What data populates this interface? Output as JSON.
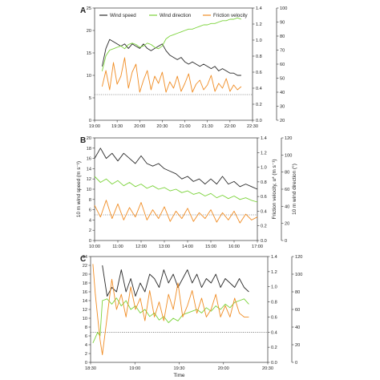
{
  "chart_data": [
    {
      "type": "line",
      "panel_label": "A",
      "xlabel": "",
      "x_ticks": [
        "19:00",
        "19:30",
        "20:00",
        "20:30",
        "21:00",
        "21:30",
        "22:00",
        "22:30"
      ],
      "x_range_min": [
        0,
        210
      ],
      "left_axis": {
        "label": "",
        "ylim": [
          0,
          25
        ],
        "ticks": [
          "0",
          "5",
          "10",
          "15",
          "20",
          "25"
        ]
      },
      "right_axis_1": {
        "label": "",
        "ylim": [
          0.0,
          1.4
        ],
        "ticks": [
          "0.0",
          "0.2",
          "0.4",
          "0.6",
          "0.8",
          "1.0",
          "1.2",
          "1.4"
        ]
      },
      "right_axis_2": {
        "label": "",
        "ylim": [
          20,
          100
        ],
        "ticks": [
          "20",
          "30",
          "40",
          "50",
          "60",
          "70",
          "80",
          "90",
          "100"
        ]
      },
      "legend": {
        "placement": "top",
        "entries": [
          "Wind speed",
          "Wind direction",
          "Friction velocity"
        ]
      },
      "reference_line": {
        "axis": "right_axis_1",
        "value": 0.32,
        "style": "dotted"
      },
      "series": [
        {
          "name": "Wind speed",
          "axis": "left",
          "color": "#2b2b2b",
          "x": [
            10,
            15,
            20,
            25,
            30,
            35,
            40,
            45,
            50,
            55,
            60,
            65,
            70,
            75,
            80,
            85,
            90,
            95,
            100,
            105,
            110,
            115,
            120,
            125,
            130,
            135,
            140,
            145,
            150,
            155,
            160,
            165,
            170,
            175,
            180,
            185,
            190,
            195
          ],
          "values": [
            12,
            16,
            18,
            17.5,
            17,
            16.5,
            17,
            16,
            17,
            16.5,
            16,
            17,
            16,
            15.5,
            16,
            16.5,
            17,
            15.5,
            14.5,
            14,
            13.5,
            14,
            13,
            12.5,
            13,
            12.5,
            12,
            12.5,
            12,
            11.5,
            12,
            11,
            11.5,
            11,
            10.5,
            10.5,
            10,
            10
          ]
        },
        {
          "name": "Wind direction",
          "axis": "right_2",
          "color": "#7bd33a",
          "x": [
            10,
            15,
            20,
            25,
            30,
            35,
            40,
            45,
            50,
            55,
            60,
            65,
            70,
            75,
            80,
            85,
            90,
            95,
            100,
            105,
            110,
            115,
            120,
            125,
            130,
            135,
            140,
            145,
            150,
            155,
            160,
            165,
            170,
            175,
            180,
            185,
            190,
            195
          ],
          "values": [
            55,
            66,
            70,
            71,
            72,
            73,
            71,
            74,
            75,
            74,
            72,
            73,
            75,
            74,
            72,
            71,
            73,
            78,
            80,
            81,
            82,
            83,
            84,
            85,
            85,
            86,
            87,
            88,
            88,
            89,
            89,
            90,
            91,
            91,
            92,
            92,
            93,
            92
          ]
        },
        {
          "name": "Friction velocity",
          "axis": "right_1",
          "color": "#f08c23",
          "x": [
            10,
            15,
            20,
            25,
            30,
            35,
            40,
            45,
            50,
            55,
            60,
            65,
            70,
            75,
            80,
            85,
            90,
            95,
            100,
            105,
            110,
            115,
            120,
            125,
            130,
            135,
            140,
            145,
            150,
            155,
            160,
            165,
            170,
            175,
            180,
            185,
            190,
            195
          ],
          "values": [
            0.42,
            0.62,
            0.38,
            0.72,
            0.45,
            0.55,
            0.78,
            0.4,
            0.6,
            0.7,
            0.35,
            0.5,
            0.62,
            0.38,
            0.55,
            0.46,
            0.6,
            0.35,
            0.48,
            0.4,
            0.55,
            0.36,
            0.46,
            0.58,
            0.35,
            0.45,
            0.5,
            0.38,
            0.44,
            0.56,
            0.36,
            0.46,
            0.4,
            0.52,
            0.36,
            0.44,
            0.38,
            0.42
          ]
        }
      ]
    },
    {
      "type": "line",
      "panel_label": "B",
      "xlabel": "",
      "x_ticks": [
        "10:00",
        "11:00",
        "12:00",
        "13:00",
        "14:00",
        "15:00",
        "16:00",
        "17:00"
      ],
      "x_range_min": [
        0,
        420
      ],
      "left_axis": {
        "label": "10 m wind speed (m s⁻¹)",
        "ylim": [
          0,
          20
        ],
        "ticks": [
          "0",
          "2",
          "4",
          "6",
          "8",
          "10",
          "12",
          "14",
          "16",
          "18",
          "20"
        ]
      },
      "right_axis_1": {
        "label": "Friction velocity, u* (m s⁻¹)",
        "ylim": [
          0.0,
          1.4
        ],
        "ticks": [
          "0.0",
          "0.2",
          "0.4",
          "0.6",
          "0.8",
          "1.0",
          "1.2",
          "1.4"
        ]
      },
      "right_axis_2": {
        "label": "10 m wind direction (°)",
        "ylim": [
          0,
          120
        ],
        "ticks": [
          "0",
          "20",
          "40",
          "60",
          "80",
          "100",
          "120"
        ]
      },
      "reference_line": {
        "axis": "right_axis_1",
        "value": 0.35,
        "style": "dotted"
      },
      "series": [
        {
          "name": "Wind speed",
          "axis": "left",
          "color": "#2b2b2b",
          "x": [
            0,
            15,
            30,
            45,
            60,
            75,
            90,
            105,
            120,
            135,
            150,
            165,
            180,
            195,
            210,
            225,
            240,
            255,
            270,
            285,
            300,
            315,
            330,
            345,
            360,
            375,
            390,
            405,
            420
          ],
          "values": [
            16,
            18,
            16,
            17,
            15.5,
            17,
            16,
            15,
            16.5,
            15,
            14.5,
            15,
            14,
            13.5,
            13,
            12,
            12.5,
            11.5,
            12,
            11,
            12,
            11,
            12.5,
            11,
            11.5,
            10.5,
            11,
            10.5,
            10
          ]
        },
        {
          "name": "Wind direction",
          "axis": "right_2",
          "color": "#7bd33a",
          "x": [
            0,
            15,
            30,
            45,
            60,
            75,
            90,
            105,
            120,
            135,
            150,
            165,
            180,
            195,
            210,
            225,
            240,
            255,
            270,
            285,
            300,
            315,
            330,
            345,
            360,
            375,
            390,
            405,
            420
          ],
          "values": [
            75,
            68,
            72,
            66,
            70,
            64,
            68,
            63,
            66,
            61,
            64,
            60,
            62,
            58,
            60,
            56,
            58,
            54,
            56,
            52,
            55,
            50,
            53,
            49,
            52,
            48,
            50,
            47,
            45
          ]
        },
        {
          "name": "Friction velocity",
          "axis": "right_1",
          "color": "#f08c23",
          "x": [
            0,
            15,
            30,
            45,
            60,
            75,
            90,
            105,
            120,
            135,
            150,
            165,
            180,
            195,
            210,
            225,
            240,
            255,
            270,
            285,
            300,
            315,
            330,
            345,
            360,
            375,
            390,
            405,
            420
          ],
          "values": [
            0.48,
            0.32,
            0.55,
            0.3,
            0.5,
            0.28,
            0.45,
            0.32,
            0.52,
            0.28,
            0.42,
            0.3,
            0.46,
            0.26,
            0.4,
            0.3,
            0.44,
            0.26,
            0.38,
            0.3,
            0.42,
            0.25,
            0.38,
            0.28,
            0.4,
            0.24,
            0.36,
            0.28,
            0.32
          ]
        }
      ]
    },
    {
      "type": "line",
      "panel_label": "C",
      "xlabel": "Time",
      "x_ticks": [
        "18:30",
        "19:00",
        "19:30",
        "20:00",
        "20:30"
      ],
      "x_range_min": [
        0,
        150
      ],
      "left_axis": {
        "label": "",
        "ylim": [
          0,
          24
        ],
        "ticks": [
          "0",
          "2",
          "4",
          "6",
          "8",
          "10",
          "12",
          "14",
          "16",
          "18",
          "20",
          "22",
          "24"
        ]
      },
      "right_axis_1": {
        "label": "",
        "ylim": [
          0.0,
          1.4
        ],
        "ticks": [
          "0.0",
          "0.2",
          "0.4",
          "0.6",
          "0.8",
          "1.0",
          "1.2",
          "1.4"
        ]
      },
      "right_axis_2": {
        "label": "",
        "ylim": [
          0,
          120
        ],
        "ticks": [
          "0",
          "20",
          "40",
          "60",
          "80",
          "100",
          "120"
        ]
      },
      "reference_line": {
        "axis": "right_axis_1",
        "value": 0.4,
        "style": "dotted"
      },
      "series": [
        {
          "name": "Wind speed",
          "axis": "left",
          "color": "#2b2b2b",
          "x": [
            10,
            14,
            18,
            22,
            26,
            30,
            34,
            38,
            42,
            46,
            50,
            54,
            58,
            62,
            66,
            70,
            74,
            78,
            82,
            86,
            90,
            94,
            98,
            102,
            106,
            110,
            114,
            118,
            122,
            126,
            130,
            134
          ],
          "values": [
            22,
            15,
            17,
            16,
            21,
            16,
            19,
            15,
            18,
            16,
            20,
            19,
            17,
            21,
            18,
            20,
            17,
            19,
            21,
            18,
            20,
            17,
            19,
            18,
            20,
            17,
            19,
            18,
            17,
            19,
            17,
            16
          ]
        },
        {
          "name": "Wind direction",
          "axis": "right_2",
          "color": "#7bd33a",
          "x": [
            2,
            4,
            6,
            8,
            10,
            14,
            18,
            22,
            26,
            30,
            34,
            38,
            42,
            46,
            50,
            54,
            58,
            62,
            66,
            70,
            74,
            78,
            82,
            86,
            90,
            94,
            98,
            102,
            106,
            110,
            114,
            118,
            122,
            126,
            130,
            134
          ],
          "values": [
            22,
            28,
            34,
            30,
            70,
            72,
            66,
            73,
            64,
            70,
            60,
            64,
            56,
            60,
            52,
            56,
            48,
            52,
            45,
            50,
            47,
            54,
            56,
            58,
            60,
            56,
            62,
            58,
            64,
            60,
            66,
            62,
            68,
            70,
            72,
            66
          ]
        },
        {
          "name": "Friction velocity",
          "axis": "right_1",
          "color": "#f08c23",
          "x": [
            2,
            4,
            6,
            8,
            10,
            14,
            18,
            22,
            26,
            30,
            34,
            38,
            42,
            46,
            50,
            54,
            58,
            62,
            66,
            70,
            74,
            78,
            82,
            86,
            90,
            94,
            98,
            102,
            106,
            110,
            114,
            118,
            122,
            126,
            130,
            134
          ],
          "values": [
            1.3,
            0.9,
            0.6,
            0.3,
            0.1,
            0.6,
            1.1,
            0.7,
            0.9,
            0.6,
            1.0,
            0.7,
            0.85,
            0.55,
            0.95,
            0.6,
            0.8,
            0.55,
            0.9,
            0.7,
            1.05,
            0.6,
            0.75,
            0.95,
            0.65,
            0.85,
            0.6,
            0.7,
            0.9,
            0.6,
            0.75,
            0.6,
            0.85,
            0.65,
            0.6,
            0.6
          ]
        }
      ]
    }
  ]
}
